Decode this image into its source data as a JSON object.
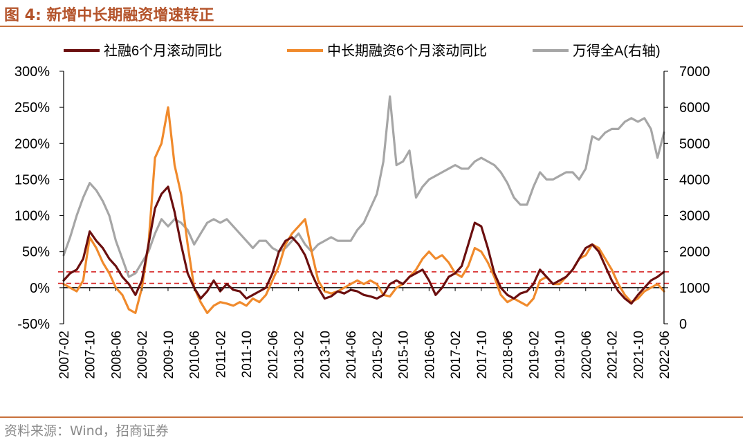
{
  "header": {
    "title": "图 4:  新增中长期融资增速转正"
  },
  "footer": {
    "source": "资料来源：Wind，招商证券"
  },
  "chart_data": {
    "type": "line",
    "title": "新增中长期融资增速转正",
    "xlabel": "",
    "ylabel_left": "",
    "ylabel_right": "",
    "x_tick_labels": [
      "2007-02",
      "2007-10",
      "2008-06",
      "2009-02",
      "2009-10",
      "2010-06",
      "2011-02",
      "2011-10",
      "2012-06",
      "2013-02",
      "2013-10",
      "2014-06",
      "2015-02",
      "2015-10",
      "2016-06",
      "2017-02",
      "2017-10",
      "2018-06",
      "2019-02",
      "2019-10",
      "2020-06",
      "2021-02",
      "2021-10",
      "2022-06"
    ],
    "y_left_ticks": [
      "300%",
      "250%",
      "200%",
      "150%",
      "100%",
      "50%",
      "0%",
      "-50%"
    ],
    "y_right_ticks": [
      "7000",
      "6000",
      "5000",
      "4000",
      "3000",
      "2000",
      "1000",
      "0"
    ],
    "ylim_left": [
      -50,
      300
    ],
    "ylim_right": [
      0,
      7000
    ],
    "reference_lines": [
      {
        "axis": "left",
        "value": 22
      },
      {
        "axis": "left",
        "value": 6
      }
    ],
    "series": [
      {
        "name": "社融6个月滚动同比",
        "axis": "left",
        "color": "#6b0f0f",
        "points": [
          [
            "2007-02",
            10
          ],
          [
            "2007-04",
            20
          ],
          [
            "2007-06",
            25
          ],
          [
            "2007-08",
            40
          ],
          [
            "2007-10",
            78
          ],
          [
            "2007-12",
            65
          ],
          [
            "2008-02",
            55
          ],
          [
            "2008-04",
            40
          ],
          [
            "2008-06",
            30
          ],
          [
            "2008-08",
            15
          ],
          [
            "2008-10",
            5
          ],
          [
            "2008-12",
            -10
          ],
          [
            "2009-02",
            10
          ],
          [
            "2009-04",
            60
          ],
          [
            "2009-06",
            110
          ],
          [
            "2009-08",
            130
          ],
          [
            "2009-10",
            140
          ],
          [
            "2009-12",
            105
          ],
          [
            "2010-02",
            60
          ],
          [
            "2010-04",
            20
          ],
          [
            "2010-06",
            0
          ],
          [
            "2010-08",
            -15
          ],
          [
            "2010-10",
            -5
          ],
          [
            "2010-12",
            10
          ],
          [
            "2011-02",
            -5
          ],
          [
            "2011-04",
            5
          ],
          [
            "2011-06",
            -3
          ],
          [
            "2011-08",
            -5
          ],
          [
            "2011-10",
            -15
          ],
          [
            "2011-12",
            -10
          ],
          [
            "2012-02",
            -5
          ],
          [
            "2012-04",
            0
          ],
          [
            "2012-06",
            20
          ],
          [
            "2012-08",
            50
          ],
          [
            "2012-10",
            65
          ],
          [
            "2012-12",
            70
          ],
          [
            "2013-02",
            60
          ],
          [
            "2013-04",
            45
          ],
          [
            "2013-06",
            20
          ],
          [
            "2013-08",
            0
          ],
          [
            "2013-10",
            -15
          ],
          [
            "2013-12",
            -12
          ],
          [
            "2014-02",
            -5
          ],
          [
            "2014-04",
            -8
          ],
          [
            "2014-06",
            -3
          ],
          [
            "2014-08",
            -5
          ],
          [
            "2014-10",
            -10
          ],
          [
            "2014-12",
            -12
          ],
          [
            "2015-02",
            -15
          ],
          [
            "2015-04",
            -10
          ],
          [
            "2015-06",
            5
          ],
          [
            "2015-08",
            10
          ],
          [
            "2015-10",
            5
          ],
          [
            "2015-12",
            15
          ],
          [
            "2016-02",
            20
          ],
          [
            "2016-04",
            25
          ],
          [
            "2016-06",
            10
          ],
          [
            "2016-08",
            -10
          ],
          [
            "2016-10",
            0
          ],
          [
            "2016-12",
            15
          ],
          [
            "2017-02",
            20
          ],
          [
            "2017-04",
            30
          ],
          [
            "2017-06",
            60
          ],
          [
            "2017-08",
            90
          ],
          [
            "2017-10",
            85
          ],
          [
            "2017-12",
            55
          ],
          [
            "2018-02",
            20
          ],
          [
            "2018-04",
            0
          ],
          [
            "2018-06",
            -10
          ],
          [
            "2018-08",
            -15
          ],
          [
            "2018-10",
            -8
          ],
          [
            "2018-12",
            -5
          ],
          [
            "2019-02",
            5
          ],
          [
            "2019-04",
            25
          ],
          [
            "2019-06",
            15
          ],
          [
            "2019-08",
            5
          ],
          [
            "2019-10",
            10
          ],
          [
            "2019-12",
            15
          ],
          [
            "2020-02",
            25
          ],
          [
            "2020-04",
            40
          ],
          [
            "2020-06",
            55
          ],
          [
            "2020-08",
            60
          ],
          [
            "2020-10",
            50
          ],
          [
            "2020-12",
            30
          ],
          [
            "2021-02",
            10
          ],
          [
            "2021-04",
            -5
          ],
          [
            "2021-06",
            -15
          ],
          [
            "2021-08",
            -22
          ],
          [
            "2021-10",
            -10
          ],
          [
            "2021-12",
            0
          ],
          [
            "2022-02",
            10
          ],
          [
            "2022-04",
            15
          ],
          [
            "2022-06",
            22
          ]
        ]
      },
      {
        "name": "中长期融资6个月滚动同比",
        "axis": "left",
        "color": "#f08a2c",
        "points": [
          [
            "2007-02",
            5
          ],
          [
            "2007-04",
            0
          ],
          [
            "2007-06",
            -5
          ],
          [
            "2007-08",
            10
          ],
          [
            "2007-10",
            70
          ],
          [
            "2007-12",
            55
          ],
          [
            "2008-02",
            35
          ],
          [
            "2008-04",
            20
          ],
          [
            "2008-06",
            0
          ],
          [
            "2008-08",
            -10
          ],
          [
            "2008-10",
            -30
          ],
          [
            "2008-12",
            -35
          ],
          [
            "2009-02",
            0
          ],
          [
            "2009-04",
            60
          ],
          [
            "2009-06",
            180
          ],
          [
            "2009-08",
            200
          ],
          [
            "2009-10",
            250
          ],
          [
            "2009-12",
            170
          ],
          [
            "2010-02",
            130
          ],
          [
            "2010-04",
            60
          ],
          [
            "2010-06",
            0
          ],
          [
            "2010-08",
            -20
          ],
          [
            "2010-10",
            -35
          ],
          [
            "2010-12",
            -25
          ],
          [
            "2011-02",
            -20
          ],
          [
            "2011-04",
            -22
          ],
          [
            "2011-06",
            -25
          ],
          [
            "2011-08",
            -20
          ],
          [
            "2011-10",
            -25
          ],
          [
            "2011-12",
            -15
          ],
          [
            "2012-02",
            -20
          ],
          [
            "2012-04",
            -10
          ],
          [
            "2012-06",
            10
          ],
          [
            "2012-08",
            30
          ],
          [
            "2012-10",
            60
          ],
          [
            "2012-12",
            75
          ],
          [
            "2013-02",
            85
          ],
          [
            "2013-04",
            95
          ],
          [
            "2013-06",
            50
          ],
          [
            "2013-08",
            10
          ],
          [
            "2013-10",
            -5
          ],
          [
            "2013-12",
            -8
          ],
          [
            "2014-02",
            -5
          ],
          [
            "2014-04",
            0
          ],
          [
            "2014-06",
            5
          ],
          [
            "2014-08",
            10
          ],
          [
            "2014-10",
            5
          ],
          [
            "2014-12",
            10
          ],
          [
            "2015-02",
            5
          ],
          [
            "2015-04",
            -10
          ],
          [
            "2015-06",
            -12
          ],
          [
            "2015-08",
            0
          ],
          [
            "2015-10",
            5
          ],
          [
            "2015-12",
            15
          ],
          [
            "2016-02",
            25
          ],
          [
            "2016-04",
            40
          ],
          [
            "2016-06",
            50
          ],
          [
            "2016-08",
            40
          ],
          [
            "2016-10",
            45
          ],
          [
            "2016-12",
            35
          ],
          [
            "2017-02",
            20
          ],
          [
            "2017-04",
            15
          ],
          [
            "2017-06",
            30
          ],
          [
            "2017-08",
            55
          ],
          [
            "2017-10",
            50
          ],
          [
            "2017-12",
            35
          ],
          [
            "2018-02",
            15
          ],
          [
            "2018-04",
            -10
          ],
          [
            "2018-06",
            -20
          ],
          [
            "2018-08",
            -15
          ],
          [
            "2018-10",
            -20
          ],
          [
            "2018-12",
            -25
          ],
          [
            "2019-02",
            -15
          ],
          [
            "2019-04",
            10
          ],
          [
            "2019-06",
            15
          ],
          [
            "2019-08",
            5
          ],
          [
            "2019-10",
            5
          ],
          [
            "2019-12",
            15
          ],
          [
            "2020-02",
            25
          ],
          [
            "2020-04",
            40
          ],
          [
            "2020-06",
            45
          ],
          [
            "2020-08",
            60
          ],
          [
            "2020-10",
            55
          ],
          [
            "2020-12",
            40
          ],
          [
            "2021-02",
            25
          ],
          [
            "2021-04",
            5
          ],
          [
            "2021-06",
            -10
          ],
          [
            "2021-08",
            -20
          ],
          [
            "2021-10",
            -15
          ],
          [
            "2021-12",
            -5
          ],
          [
            "2022-02",
            0
          ],
          [
            "2022-04",
            5
          ],
          [
            "2022-06",
            -5
          ]
        ]
      },
      {
        "name": "万得全A(右轴)",
        "axis": "right",
        "color": "#a6a6a6",
        "points": [
          [
            "2007-02",
            1900
          ],
          [
            "2007-04",
            2400
          ],
          [
            "2007-06",
            3000
          ],
          [
            "2007-08",
            3500
          ],
          [
            "2007-10",
            3900
          ],
          [
            "2007-12",
            3700
          ],
          [
            "2008-02",
            3400
          ],
          [
            "2008-04",
            3000
          ],
          [
            "2008-06",
            2300
          ],
          [
            "2008-08",
            1800
          ],
          [
            "2008-10",
            1300
          ],
          [
            "2008-12",
            1400
          ],
          [
            "2009-02",
            1700
          ],
          [
            "2009-04",
            2000
          ],
          [
            "2009-06",
            2500
          ],
          [
            "2009-08",
            2900
          ],
          [
            "2009-10",
            2700
          ],
          [
            "2009-12",
            2900
          ],
          [
            "2010-02",
            2800
          ],
          [
            "2010-04",
            2600
          ],
          [
            "2010-06",
            2200
          ],
          [
            "2010-08",
            2500
          ],
          [
            "2010-10",
            2800
          ],
          [
            "2010-12",
            2900
          ],
          [
            "2011-02",
            2800
          ],
          [
            "2011-04",
            2900
          ],
          [
            "2011-06",
            2700
          ],
          [
            "2011-08",
            2500
          ],
          [
            "2011-10",
            2300
          ],
          [
            "2011-12",
            2100
          ],
          [
            "2012-02",
            2300
          ],
          [
            "2012-04",
            2300
          ],
          [
            "2012-06",
            2100
          ],
          [
            "2012-08",
            2000
          ],
          [
            "2012-10",
            2100
          ],
          [
            "2012-12",
            2300
          ],
          [
            "2013-02",
            2500
          ],
          [
            "2013-04",
            2200
          ],
          [
            "2013-06",
            2000
          ],
          [
            "2013-08",
            2200
          ],
          [
            "2013-10",
            2300
          ],
          [
            "2013-12",
            2400
          ],
          [
            "2014-02",
            2300
          ],
          [
            "2014-04",
            2300
          ],
          [
            "2014-06",
            2300
          ],
          [
            "2014-08",
            2600
          ],
          [
            "2014-10",
            2800
          ],
          [
            "2014-12",
            3200
          ],
          [
            "2015-02",
            3600
          ],
          [
            "2015-04",
            4500
          ],
          [
            "2015-06",
            6300
          ],
          [
            "2015-08",
            4400
          ],
          [
            "2015-10",
            4500
          ],
          [
            "2015-12",
            4800
          ],
          [
            "2016-02",
            3500
          ],
          [
            "2016-04",
            3800
          ],
          [
            "2016-06",
            4000
          ],
          [
            "2016-08",
            4100
          ],
          [
            "2016-10",
            4200
          ],
          [
            "2016-12",
            4300
          ],
          [
            "2017-02",
            4400
          ],
          [
            "2017-04",
            4300
          ],
          [
            "2017-06",
            4300
          ],
          [
            "2017-08",
            4500
          ],
          [
            "2017-10",
            4600
          ],
          [
            "2017-12",
            4500
          ],
          [
            "2018-02",
            4400
          ],
          [
            "2018-04",
            4200
          ],
          [
            "2018-06",
            3900
          ],
          [
            "2018-08",
            3500
          ],
          [
            "2018-10",
            3300
          ],
          [
            "2018-12",
            3300
          ],
          [
            "2019-02",
            3800
          ],
          [
            "2019-04",
            4200
          ],
          [
            "2019-06",
            4000
          ],
          [
            "2019-08",
            4000
          ],
          [
            "2019-10",
            4100
          ],
          [
            "2019-12",
            4200
          ],
          [
            "2020-02",
            4200
          ],
          [
            "2020-04",
            4000
          ],
          [
            "2020-06",
            4300
          ],
          [
            "2020-08",
            5200
          ],
          [
            "2020-10",
            5100
          ],
          [
            "2020-12",
            5300
          ],
          [
            "2021-02",
            5400
          ],
          [
            "2021-04",
            5400
          ],
          [
            "2021-06",
            5600
          ],
          [
            "2021-08",
            5700
          ],
          [
            "2021-10",
            5600
          ],
          [
            "2021-12",
            5700
          ],
          [
            "2022-02",
            5400
          ],
          [
            "2022-04",
            4600
          ],
          [
            "2022-06",
            5300
          ]
        ]
      }
    ]
  }
}
